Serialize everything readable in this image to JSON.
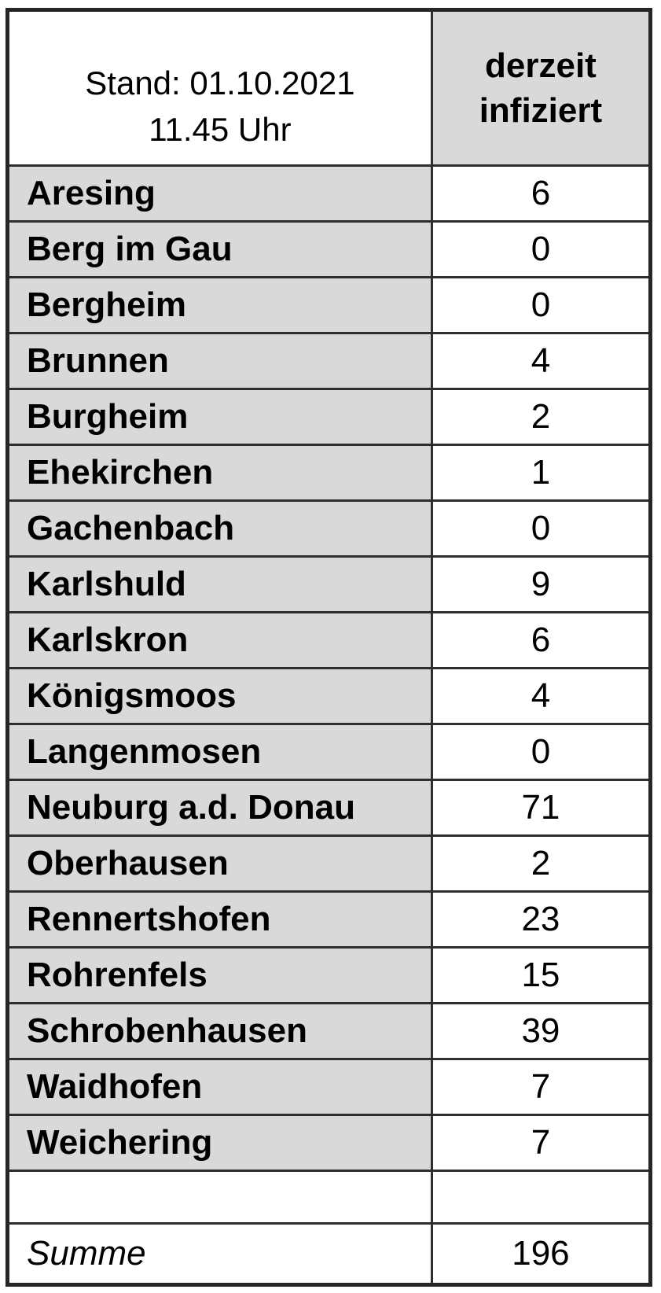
{
  "header": {
    "stand_line1": "Stand: 01.10.2021",
    "stand_line2": "11.45 Uhr",
    "value_col_line1": "derzeit",
    "value_col_line2": "infiziert"
  },
  "summary": {
    "label": "Summe",
    "value": "196"
  },
  "colors": {
    "cell_fill_gray": "#d9d9d9",
    "cell_fill_white": "#ffffff",
    "border": "#2e2e2e",
    "text": "#000000"
  },
  "chart_data": {
    "type": "table",
    "title": "Stand: 01.10.2021 11.45 Uhr",
    "columns": [
      "Stand: 01.10.2021 11.45 Uhr",
      "derzeit infiziert"
    ],
    "categories": [
      "Aresing",
      "Berg im Gau",
      "Bergheim",
      "Brunnen",
      "Burgheim",
      "Ehekirchen",
      "Gachenbach",
      "Karlshuld",
      "Karlskron",
      "Königsmoos",
      "Langenmosen",
      "Neuburg a.d. Donau",
      "Oberhausen",
      "Rennertshofen",
      "Rohrenfels",
      "Schrobenhausen",
      "Waidhofen",
      "Weichering"
    ],
    "values": [
      6,
      0,
      0,
      4,
      2,
      1,
      0,
      9,
      6,
      4,
      0,
      71,
      2,
      23,
      15,
      39,
      7,
      7
    ],
    "total_label": "Summe",
    "total_value": 196,
    "layout": {
      "grid": true,
      "name_column_fill": "#d9d9d9",
      "value_column_fill": "#ffffff"
    }
  }
}
